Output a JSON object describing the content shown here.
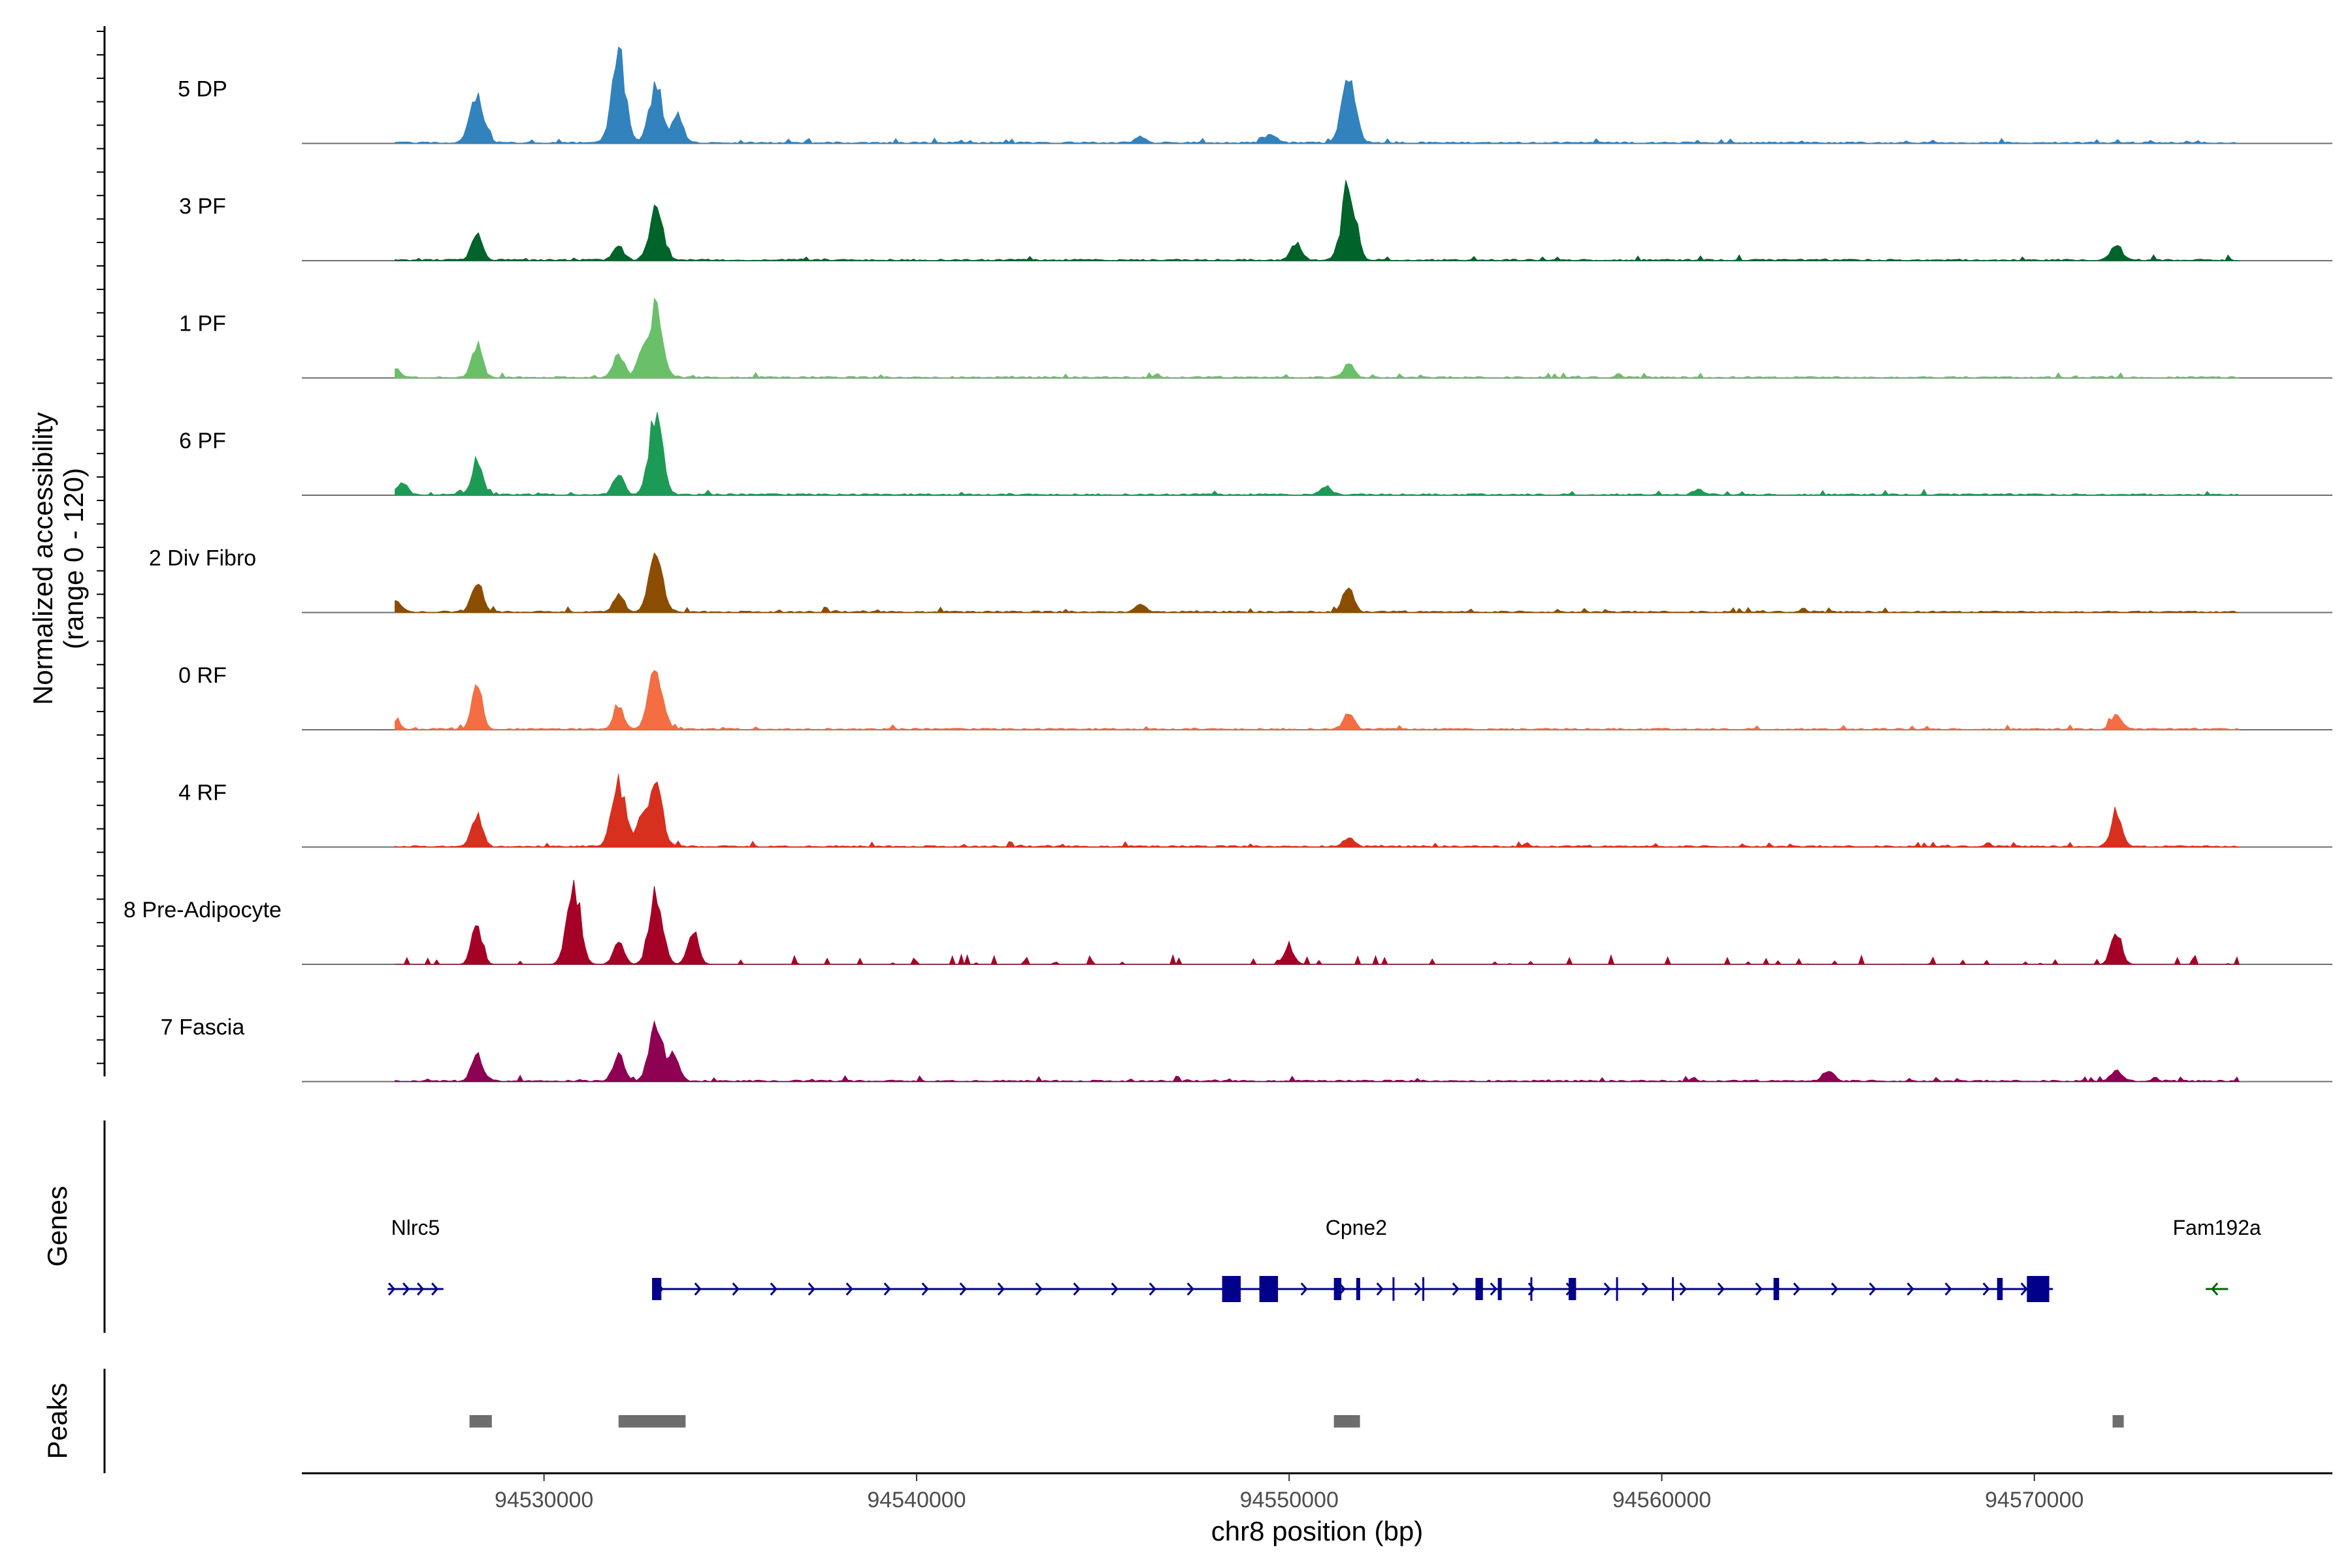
{
  "chart_data": {
    "type": "area",
    "title": "",
    "ylabel": "Normalized accessibility\n(range 0 - 120)",
    "y_range": [
      0,
      120
    ],
    "xlabel": "chr8 position (bp)",
    "xlim": [
      94523500,
      94578000
    ],
    "x_ticks": [
      94530000,
      94540000,
      94550000,
      94560000,
      94570000
    ],
    "x_tick_labels": [
      "94530000",
      "94540000",
      "94550000",
      "94560000",
      "94570000"
    ],
    "panel_labels": {
      "genes": "Genes",
      "peaks": "Peaks"
    },
    "tracks": [
      {
        "name": "5 DP",
        "color": "#3182bd",
        "peaks": [
          [
            94528200,
            52
          ],
          [
            94532000,
            100
          ],
          [
            94533000,
            65
          ],
          [
            94533600,
            30
          ],
          [
            94551600,
            70
          ],
          [
            94546000,
            8
          ],
          [
            94549500,
            10
          ]
        ]
      },
      {
        "name": "3 PF",
        "color": "#00632a",
        "peaks": [
          [
            94528200,
            30
          ],
          [
            94532000,
            15
          ],
          [
            94533000,
            56
          ],
          [
            94550200,
            18
          ],
          [
            94551600,
            82
          ],
          [
            94572200,
            18
          ]
        ]
      },
      {
        "name": "1 PF",
        "color": "#6abf69",
        "peaks": [
          [
            94526000,
            10
          ],
          [
            94528200,
            35
          ],
          [
            94532000,
            28
          ],
          [
            94532600,
            20
          ],
          [
            94533000,
            75
          ],
          [
            94551600,
            15
          ]
        ]
      },
      {
        "name": "6 PF",
        "color": "#1d9a55",
        "peaks": [
          [
            94526200,
            12
          ],
          [
            94528200,
            38
          ],
          [
            94532000,
            25
          ],
          [
            94533000,
            88
          ],
          [
            94551000,
            10
          ],
          [
            94561000,
            6
          ]
        ]
      },
      {
        "name": "2 Div Fibro",
        "color": "#8c4d00",
        "peaks": [
          [
            94526000,
            15
          ],
          [
            94528200,
            35
          ],
          [
            94532000,
            20
          ],
          [
            94533000,
            70
          ],
          [
            94551600,
            25
          ],
          [
            94546000,
            8
          ]
        ]
      },
      {
        "name": "0 RF",
        "color": "#f46d43",
        "peaks": [
          [
            94526000,
            8
          ],
          [
            94528200,
            50
          ],
          [
            94532000,
            25
          ],
          [
            94533000,
            65
          ],
          [
            94551600,
            18
          ],
          [
            94572200,
            15
          ]
        ]
      },
      {
        "name": "4 RF",
        "color": "#d7301f",
        "peaks": [
          [
            94528200,
            35
          ],
          [
            94532000,
            72
          ],
          [
            94532600,
            25
          ],
          [
            94533000,
            62
          ],
          [
            94551600,
            10
          ],
          [
            94572200,
            38
          ]
        ]
      },
      {
        "name": "8 Pre-Adipocyte",
        "color": "#a50026",
        "peaks": [
          [
            94528200,
            42
          ],
          [
            94530800,
            80
          ],
          [
            94532000,
            25
          ],
          [
            94533000,
            75
          ],
          [
            94534000,
            40
          ],
          [
            94572200,
            38
          ],
          [
            94550000,
            18
          ]
        ]
      },
      {
        "name": "7 Fascia",
        "color": "#8e0152",
        "peaks": [
          [
            94528200,
            30
          ],
          [
            94532000,
            30
          ],
          [
            94533000,
            60
          ],
          [
            94533500,
            25
          ],
          [
            94564500,
            12
          ],
          [
            94572200,
            12
          ]
        ]
      }
    ],
    "genes": [
      {
        "name": "Nlrc5",
        "start": 94525800,
        "end": 94527300,
        "strand": "+",
        "color": "#00008b",
        "exons": []
      },
      {
        "name": "Cpne2",
        "start": 94533000,
        "end": 94570500,
        "strand": "+",
        "color": "#00008b",
        "exons": [
          [
            94532900,
            94533150
          ],
          [
            94548200,
            94548700
          ],
          [
            94549200,
            94549700
          ],
          [
            94551200,
            94551400
          ],
          [
            94551800,
            94551900
          ],
          [
            94555000,
            94555200
          ],
          [
            94555600,
            94555700
          ],
          [
            94557500,
            94557700
          ],
          [
            94563000,
            94563150
          ],
          [
            94569000,
            94569150
          ],
          [
            94569800,
            94570400
          ]
        ]
      },
      {
        "name": "Fam192a",
        "start": 94574600,
        "end": 94575200,
        "strand": "-",
        "color": "#006400",
        "exons": []
      }
    ],
    "peak_regions": [
      [
        94528000,
        94528600
      ],
      [
        94532000,
        94533800
      ],
      [
        94551200,
        94551900
      ],
      [
        94572100,
        94572400
      ]
    ]
  }
}
